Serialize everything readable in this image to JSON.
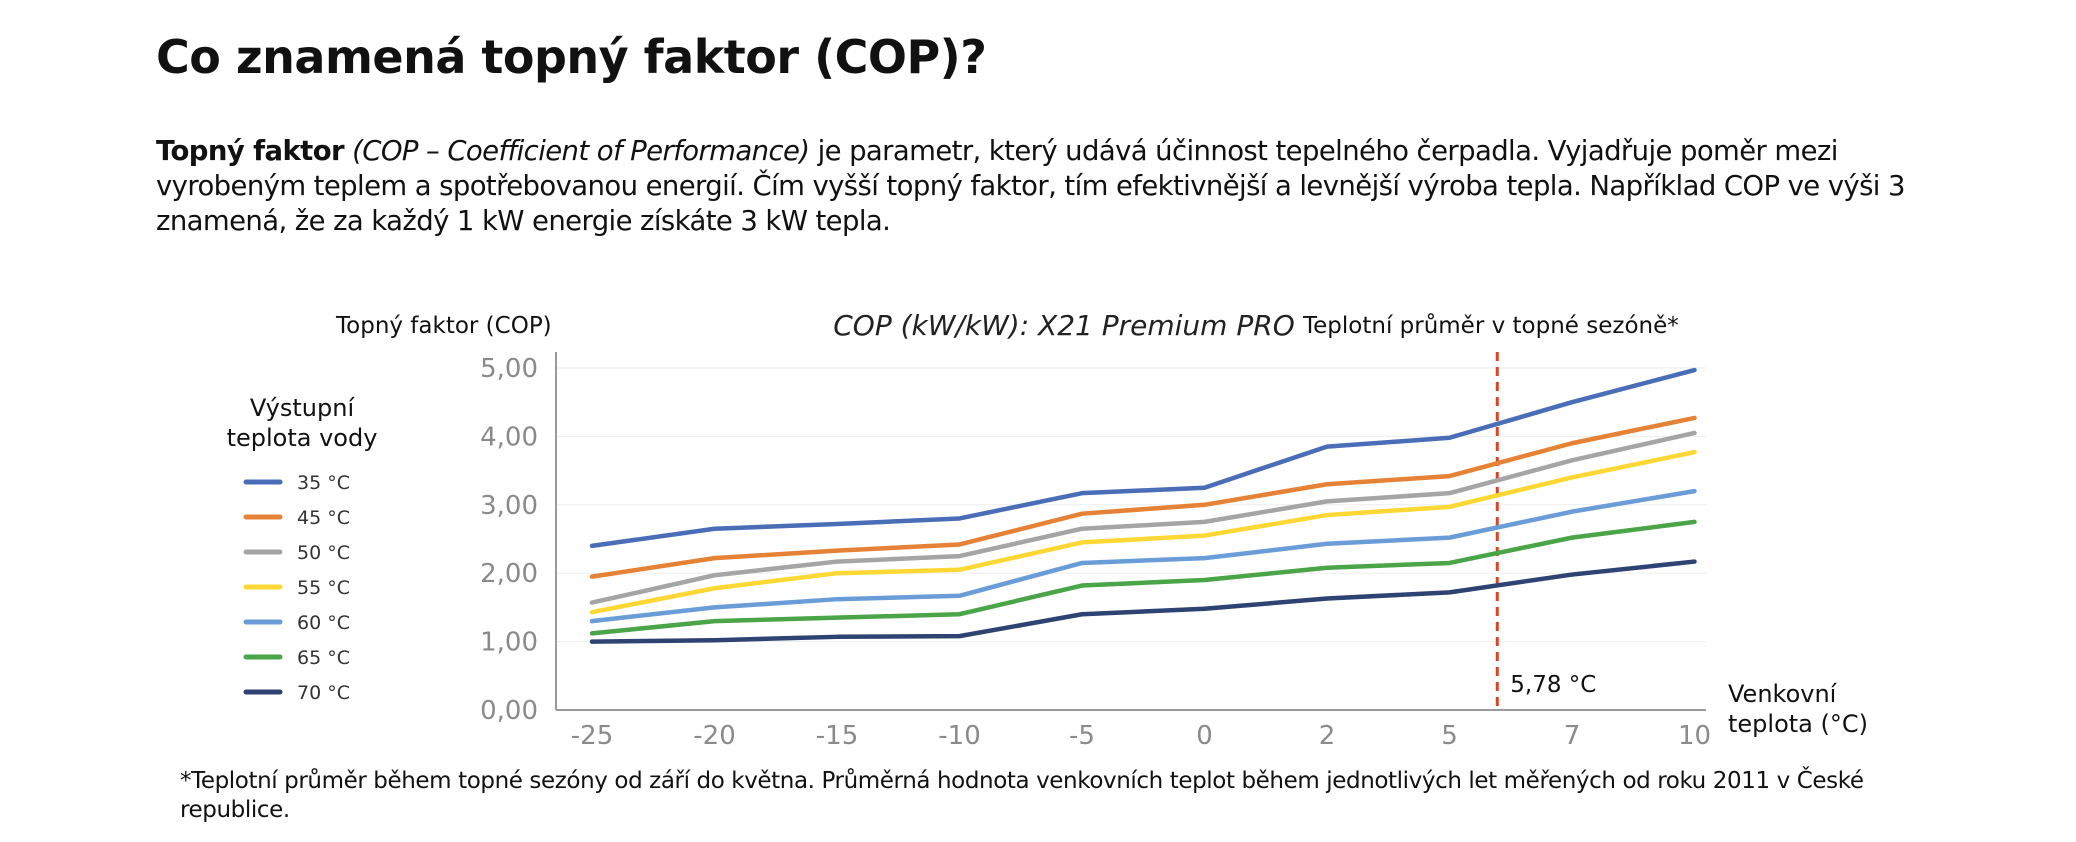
{
  "heading": "Co znamená topný faktor (COP)?",
  "intro": {
    "bold_lead": "Topný faktor",
    "italic_part": "(COP – Coefficient of Performance)",
    "rest": " je parametr, který udává účinnost tepelného čerpadla. Vyjadřuje poměr mezi vyrobeným teplem a spotřebovanou energií. Čím vyšší topný faktor, tím efektivnější a levnější výroba tepla. Například COP ve výši 3 znamená, že za každý 1 kW energie získáte 3 kW tepla."
  },
  "footnote": "*Teplotní průměr během topné sezóny od září do května. Průměrná hodnota venkovních teplot během jednotlivých let měřených od roku 2011 v České republice.",
  "chart_data": {
    "type": "line",
    "title": "COP (kW/kW): X21 Premium PRO",
    "ylabel": "Topný faktor (COP)",
    "xlabel_lines": [
      "Venkovní",
      "teplota (°C)"
    ],
    "legend_title_lines": [
      "Výstupní",
      "teplota vody"
    ],
    "legend_position": "left",
    "categories": [
      "-25",
      "-20",
      "-15",
      "-10",
      "-5",
      "0",
      "2",
      "5",
      "7",
      "10"
    ],
    "y_tick_labels": [
      "0,00",
      "1,00",
      "2,00",
      "3,00",
      "4,00",
      "5,00"
    ],
    "ylim": [
      0,
      5
    ],
    "grid": true,
    "series": [
      {
        "name": "35 °C",
        "color": "#4A6DB8",
        "values": [
          2.4,
          2.65,
          2.72,
          2.8,
          3.17,
          3.25,
          3.85,
          3.98,
          4.5,
          4.97
        ]
      },
      {
        "name": "45 °C",
        "color": "#E58236",
        "values": [
          1.95,
          2.22,
          2.33,
          2.42,
          2.87,
          3.0,
          3.3,
          3.42,
          3.9,
          4.27
        ]
      },
      {
        "name": "50 °C",
        "color": "#A5A5A5",
        "values": [
          1.57,
          1.97,
          2.17,
          2.25,
          2.65,
          2.75,
          3.05,
          3.17,
          3.65,
          4.05
        ]
      },
      {
        "name": "55 °C",
        "color": "#FDD835",
        "values": [
          1.43,
          1.78,
          2.0,
          2.05,
          2.45,
          2.55,
          2.85,
          2.97,
          3.4,
          3.77
        ]
      },
      {
        "name": "60 °C",
        "color": "#6A9DD8",
        "values": [
          1.3,
          1.5,
          1.62,
          1.67,
          2.15,
          2.22,
          2.43,
          2.52,
          2.9,
          3.2
        ]
      },
      {
        "name": "65 °C",
        "color": "#4AA548",
        "values": [
          1.12,
          1.3,
          1.35,
          1.4,
          1.82,
          1.9,
          2.08,
          2.15,
          2.52,
          2.75
        ]
      },
      {
        "name": "70 °C",
        "color": "#2E4372",
        "values": [
          1.0,
          1.02,
          1.07,
          1.08,
          1.4,
          1.48,
          1.63,
          1.72,
          1.98,
          2.17
        ]
      }
    ],
    "reference_line": {
      "x_value": 5.78,
      "label": "5,78 °C",
      "top_label": "Teplotní průměr v topné sezóně*",
      "color": "#D9452B"
    }
  }
}
